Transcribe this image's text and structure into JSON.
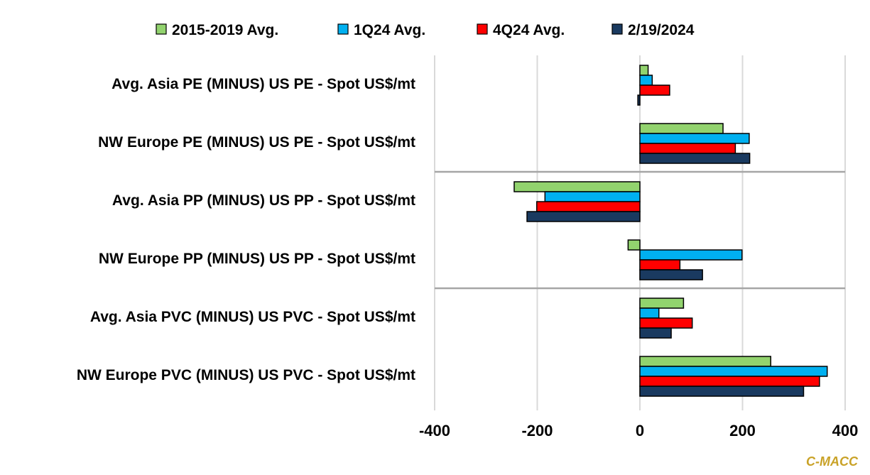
{
  "chart_data": {
    "type": "bar",
    "orientation": "horizontal",
    "categories": [
      "Avg. Asia PE (MINUS) US PE - Spot US$/mt",
      "NW Europe PE (MINUS) US PE - Spot US$/mt",
      "Avg. Asia PP (MINUS) US PP - Spot US$/mt",
      "NW Europe PP (MINUS) US PP - Spot US$/mt",
      "Avg. Asia PVC (MINUS) US PVC - Spot US$/mt",
      "NW Europe PVC (MINUS) US PVC - Spot US$/mt"
    ],
    "series": [
      {
        "name": "2015-2019 Avg.",
        "color": "#92d36e",
        "values": [
          16,
          162,
          -245,
          -23,
          85,
          255
        ]
      },
      {
        "name": "1Q24 Avg.",
        "color": "#00b0f0",
        "values": [
          24,
          213,
          -185,
          199,
          37,
          365
        ]
      },
      {
        "name": "4Q24 Avg.",
        "color": "#ff0000",
        "values": [
          58,
          186,
          -201,
          78,
          102,
          350
        ]
      },
      {
        "name": "2/19/2024",
        "color": "#1a3a60",
        "values": [
          -4,
          214,
          -220,
          122,
          61,
          319
        ]
      }
    ],
    "xlim": [
      -400,
      400
    ],
    "xticks": [
      -400,
      -200,
      0,
      200,
      400
    ],
    "grid": true,
    "legend_position": "top",
    "title": "",
    "xlabel": "",
    "ylabel": ""
  },
  "watermark": "C-MACC"
}
